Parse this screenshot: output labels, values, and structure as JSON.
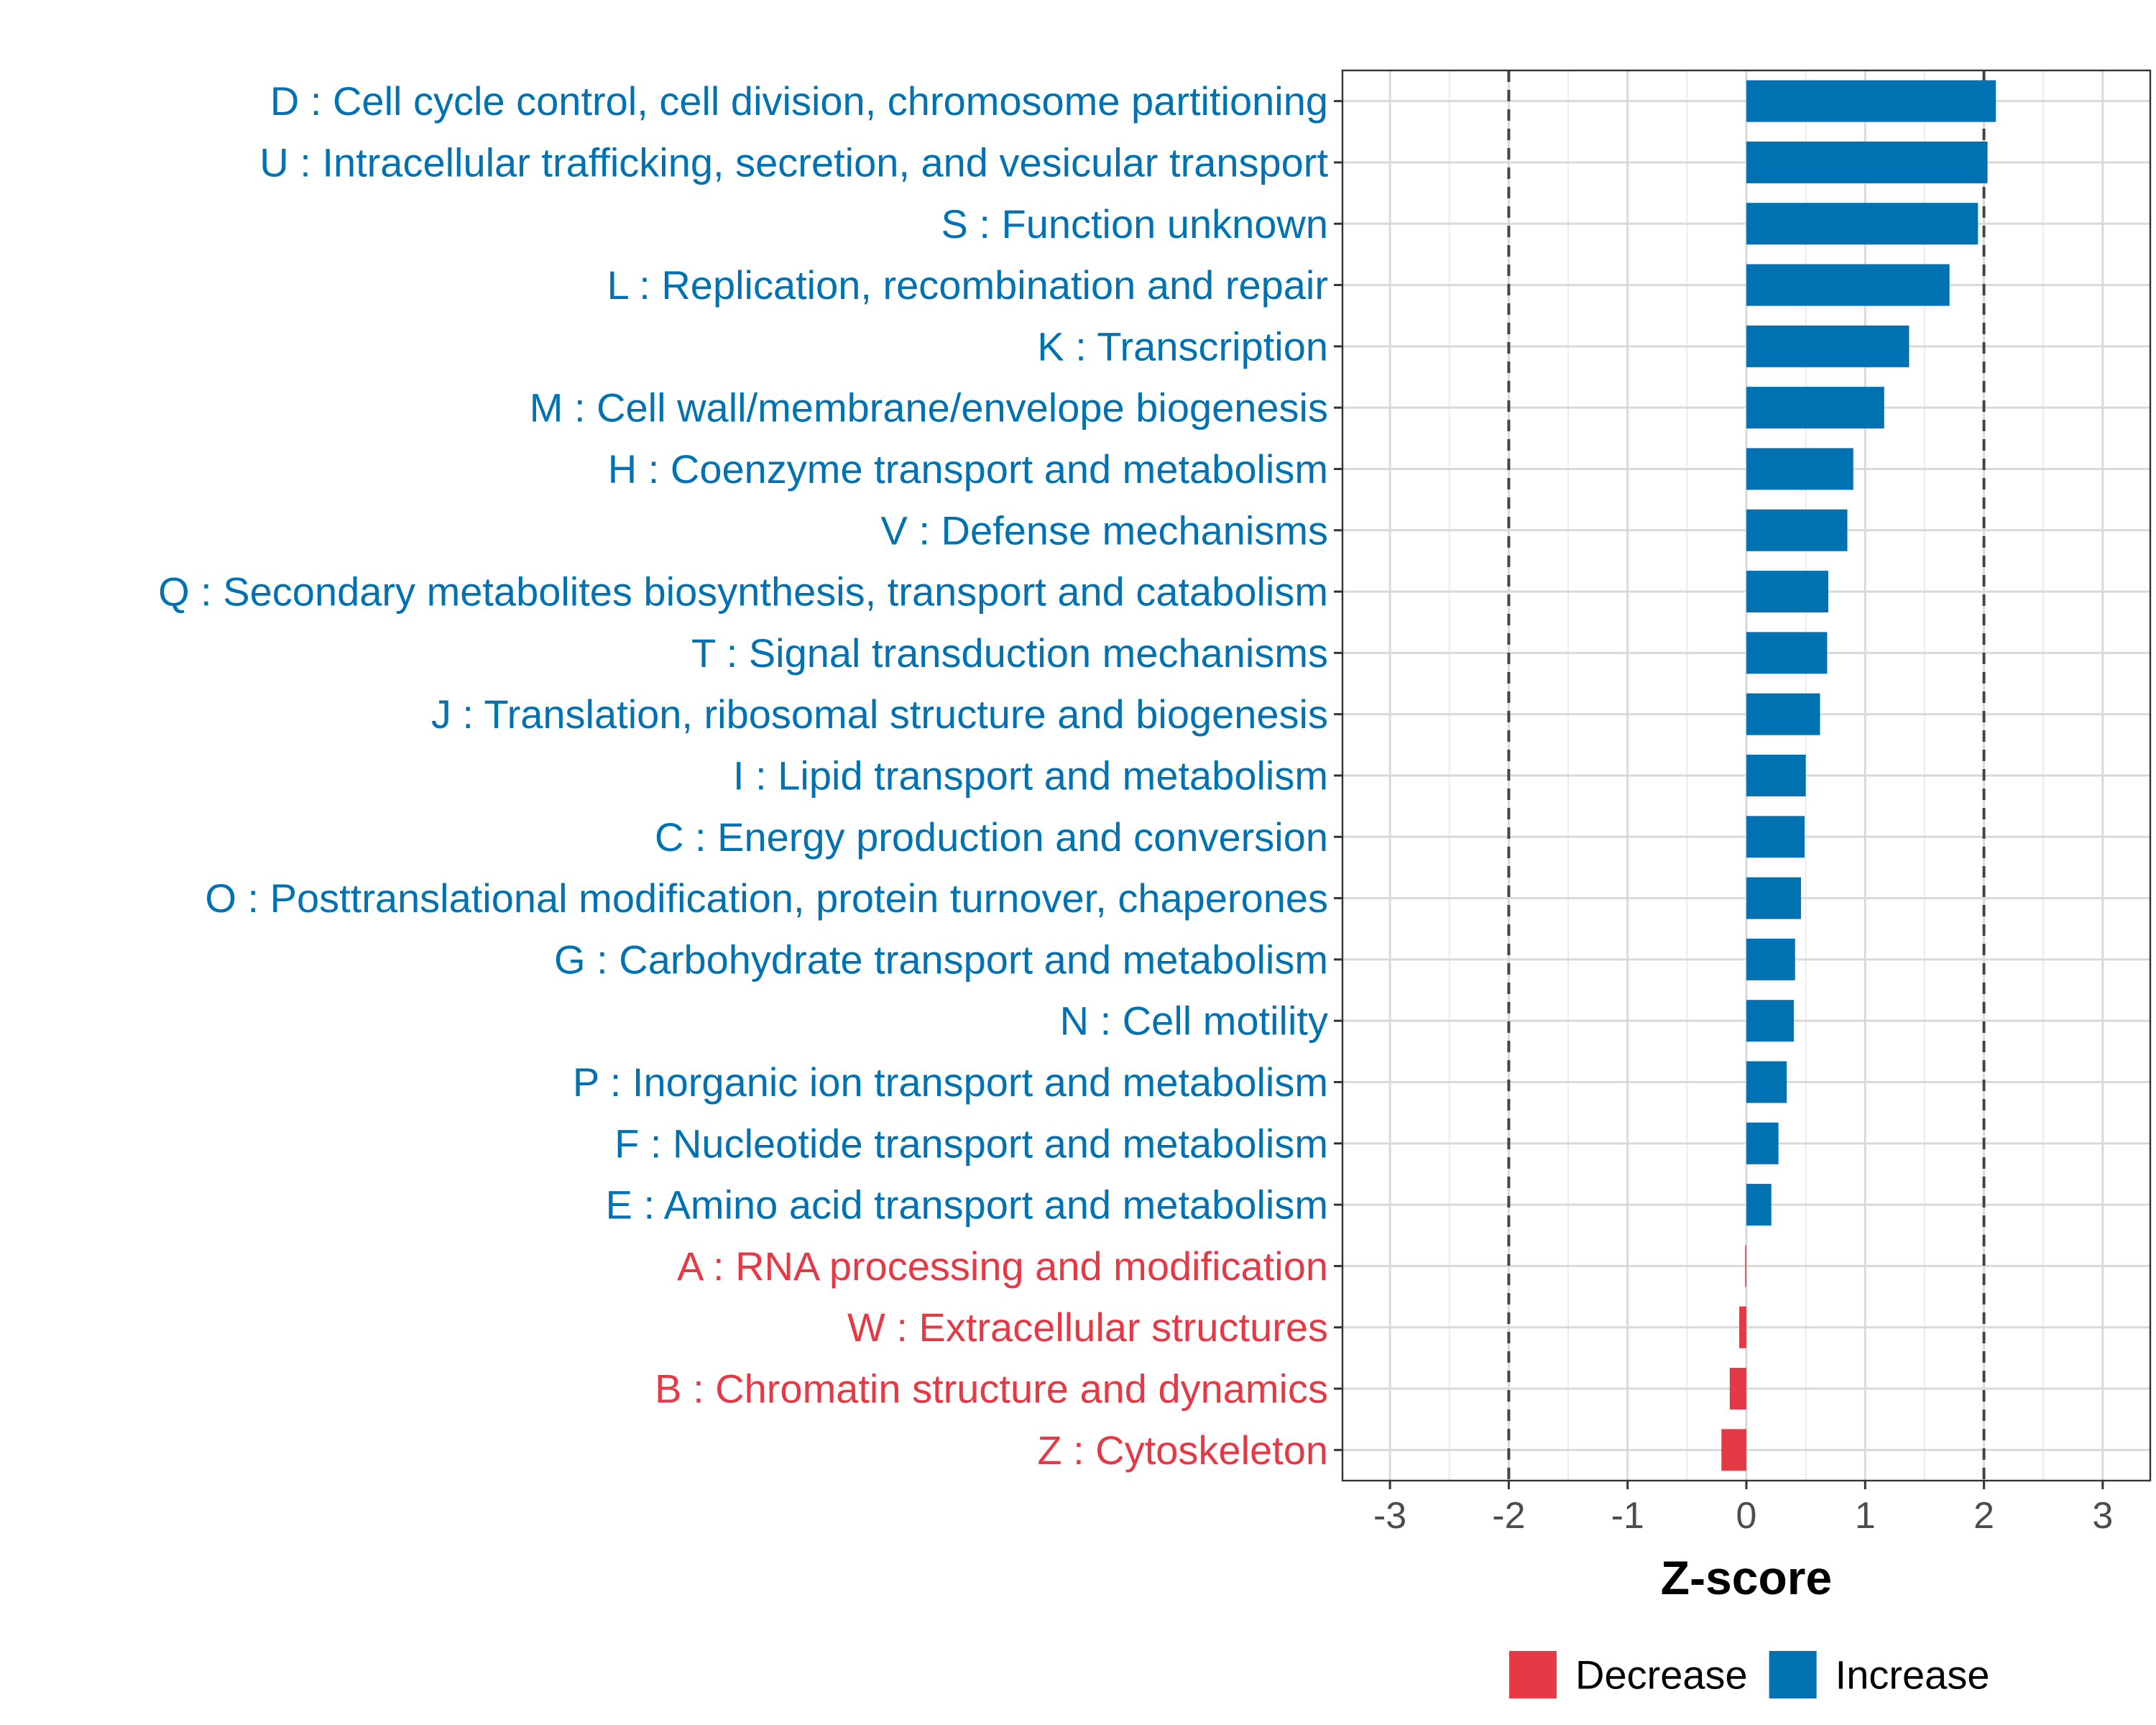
{
  "chart_data": {
    "type": "bar",
    "orientation": "horizontal",
    "xlabel": "Z-score",
    "xlim": [
      -3.4,
      3.4
    ],
    "xticks": [
      -3,
      -2,
      -1,
      0,
      1,
      2,
      3
    ],
    "tick_labels": [
      "-3",
      "-2",
      "-1",
      "0",
      "1",
      "2",
      "3"
    ],
    "reference_lines": [
      -2,
      2
    ],
    "grid": true,
    "legend_position": "bottom",
    "colors": {
      "Increase": "#0072b2",
      "Decrease": "#e63946"
    },
    "legend": [
      {
        "name": "Decrease",
        "color": "#e63946"
      },
      {
        "name": "Increase",
        "color": "#0072b2"
      }
    ],
    "categories": [
      "D : Cell cycle control, cell division, chromosome partitioning",
      "U : Intracellular trafficking, secretion, and vesicular transport",
      "S : Function unknown",
      "L : Replication, recombination and repair",
      "K : Transcription",
      "M : Cell wall/membrane/envelope biogenesis",
      "H : Coenzyme transport and metabolism",
      "V : Defense mechanisms",
      "Q : Secondary metabolites biosynthesis, transport and catabolism",
      "T : Signal transduction mechanisms",
      "J : Translation, ribosomal structure and biogenesis",
      "I : Lipid transport and metabolism",
      "C : Energy production and conversion",
      "O : Posttranslational modification, protein turnover, chaperones",
      "G : Carbohydrate transport and metabolism",
      "N : Cell motility",
      "P : Inorganic ion transport and metabolism",
      "F : Nucleotide transport and metabolism",
      "E : Amino acid transport and metabolism",
      "A : RNA processing and modification",
      "W : Extracellular structures",
      "B : Chromatin structure and dynamics",
      "Z : Cytoskeleton"
    ],
    "values": [
      2.1,
      2.03,
      1.95,
      1.71,
      1.37,
      1.16,
      0.9,
      0.85,
      0.69,
      0.68,
      0.62,
      0.5,
      0.49,
      0.46,
      0.41,
      0.4,
      0.34,
      0.27,
      0.21,
      -0.01,
      -0.06,
      -0.14,
      -0.21
    ],
    "groups": [
      "Increase",
      "Increase",
      "Increase",
      "Increase",
      "Increase",
      "Increase",
      "Increase",
      "Increase",
      "Increase",
      "Increase",
      "Increase",
      "Increase",
      "Increase",
      "Increase",
      "Increase",
      "Increase",
      "Increase",
      "Increase",
      "Increase",
      "Decrease",
      "Decrease",
      "Decrease",
      "Decrease"
    ]
  }
}
